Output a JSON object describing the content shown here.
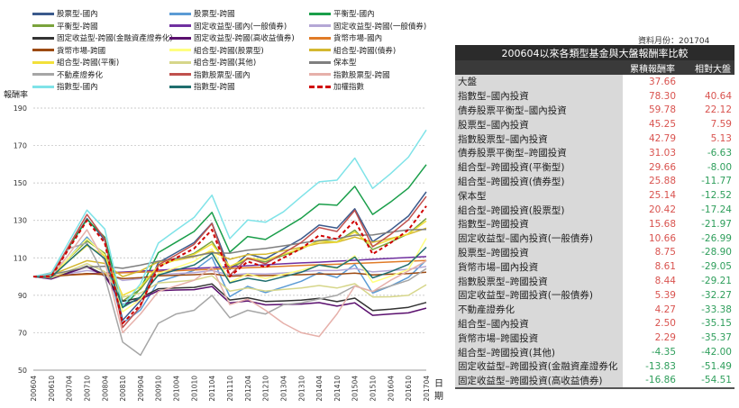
{
  "updated_label": "資料月份：201704",
  "table": {
    "title": "200604以來各類型基金與大盤報酬率比較",
    "headers": [
      "",
      "累積報酬率",
      "相對大盤"
    ],
    "rows": [
      {
        "name": "大盤",
        "ret": "37.66",
        "rel": ""
      },
      {
        "name": "指數型–國內投資",
        "ret": "78.30",
        "rel": "40.64"
      },
      {
        "name": "債券股票平衡型–國內投資",
        "ret": "59.78",
        "rel": "22.12"
      },
      {
        "name": "股票型–國內投資",
        "ret": "45.25",
        "rel": "7.59"
      },
      {
        "name": "指數股票型–國內投資",
        "ret": "42.79",
        "rel": "5.13"
      },
      {
        "name": "債券股票平衡型–跨國投資",
        "ret": "31.03",
        "rel": "-6.63"
      },
      {
        "name": "組合型–跨國投資(平衡型)",
        "ret": "29.66",
        "rel": "-8.00"
      },
      {
        "name": "組合型–跨國投資(債券型)",
        "ret": "25.88",
        "rel": "-11.77"
      },
      {
        "name": "保本型",
        "ret": "25.14",
        "rel": "-12.52"
      },
      {
        "name": "組合型–跨國投資(股票型)",
        "ret": "20.42",
        "rel": "-17.24"
      },
      {
        "name": "指數型–跨國投資",
        "ret": "15.68",
        "rel": "-21.97"
      },
      {
        "name": "固定收益型–國內投資(一般債券)",
        "ret": "10.66",
        "rel": "-26.99"
      },
      {
        "name": "股票型–跨國投資",
        "ret": "8.75",
        "rel": "-28.90"
      },
      {
        "name": "貨幣市場–國內投資",
        "ret": "8.61",
        "rel": "-29.05"
      },
      {
        "name": "指數股票型–跨國投資",
        "ret": "8.44",
        "rel": "-29.21"
      },
      {
        "name": "固定收益型–跨國投資(一般債券)",
        "ret": "5.39",
        "rel": "-32.27"
      },
      {
        "name": "不動產證券化",
        "ret": "4.27",
        "rel": "-33.38"
      },
      {
        "name": "組合型–國內投資",
        "ret": "2.50",
        "rel": "-35.15"
      },
      {
        "name": "貨幣市場–跨國投資",
        "ret": "2.29",
        "rel": "-35.37"
      },
      {
        "name": "組合型–跨國投資(其他)",
        "ret": "-4.35",
        "rel": "-42.00"
      },
      {
        "name": "固定收益型–跨國投資(金融資產證券化",
        "ret": "-13.83",
        "rel": "-51.49"
      },
      {
        "name": "固定收益型–跨國投資(高收益債券)",
        "ret": "-16.86",
        "rel": "-54.51"
      }
    ]
  },
  "chart_data": {
    "type": "line",
    "ylabel": "報酬率",
    "xlabel": "日期",
    "ylim": [
      50,
      190
    ],
    "yticks": [
      50,
      70,
      90,
      110,
      130,
      150,
      170,
      190
    ],
    "grid": true,
    "legend": "top",
    "categories": [
      "200604",
      "200610",
      "200704",
      "200710",
      "200804",
      "200810",
      "200904",
      "200910",
      "201004",
      "201010",
      "201104",
      "201110",
      "201204",
      "201210",
      "201304",
      "201310",
      "201404",
      "201410",
      "201504",
      "201510",
      "201604",
      "201610",
      "201704"
    ],
    "series": [
      {
        "name": "股票型-國內",
        "color": "#3b5a8c",
        "values": [
          100,
          100.3,
          115.7,
          131,
          119.4,
          76.7,
          87.1,
          107.4,
          112.8,
          118.1,
          128.5,
          103.8,
          112.1,
          109.5,
          114.8,
          120.2,
          127.5,
          125.9,
          136.2,
          118.6,
          124.9,
          132.3,
          145.25
        ]
      },
      {
        "name": "股票型-跨國",
        "color": "#5b9bd5",
        "values": [
          100,
          99,
          110.1,
          121.1,
          110.5,
          75.2,
          82.2,
          97.2,
          100.2,
          103.3,
          110.3,
          89.3,
          94.8,
          91.4,
          94.4,
          97.5,
          102.1,
          99.5,
          106.5,
          91.2,
          95,
          99.6,
          108.75
        ]
      },
      {
        "name": "平衡型-國內",
        "color": "#1a9e4a",
        "values": [
          100,
          101.2,
          115.9,
          130.5,
          121,
          83.4,
          93.6,
          112.8,
          118.4,
          124.1,
          134.3,
          113,
          121.4,
          119.8,
          125.5,
          131.2,
          138.7,
          138.1,
          148.2,
          133.2,
          139.8,
          147.3,
          159.78
        ]
      },
      {
        "name": "平衡型-跨國",
        "color": "#7aa33c",
        "values": [
          100,
          100.4,
          109.8,
          119.1,
          112.4,
          86.9,
          93.3,
          105.7,
          109,
          112.4,
          118.8,
          104.2,
          109.4,
          107.9,
          111.3,
          114.7,
          119.3,
          118.5,
          124.8,
          114.4,
          118.4,
          122.9,
          131.03
        ]
      },
      {
        "name": "固定收益型-國內(一般債券)",
        "color": "#7030a0",
        "values": [
          100,
          100.5,
          101,
          101.5,
          101.9,
          102.4,
          102.9,
          103.4,
          103.9,
          104.4,
          104.8,
          105.3,
          105.8,
          106.3,
          106.8,
          107.3,
          107.7,
          108.2,
          108.7,
          109.2,
          109.7,
          110.2,
          110.66
        ]
      },
      {
        "name": "固定收益型-跨國(一般債券)",
        "color": "#b4a7d6",
        "values": [
          100,
          100.1,
          101.6,
          103.2,
          102.1,
          97.9,
          98.9,
          101,
          101.6,
          102.1,
          103.2,
          100.8,
          101.6,
          101.4,
          101.9,
          102.6,
          103.3,
          103.2,
          104.3,
          102.5,
          103.2,
          103.9,
          105.39
        ]
      },
      {
        "name": "固定收益型-跨國(金融資產證券化)",
        "color": "#333333",
        "values": [
          100,
          98.9,
          102.2,
          105.6,
          100.8,
          86.8,
          88.7,
          93.5,
          93.9,
          94.2,
          96.1,
          87.5,
          88.7,
          86.7,
          87,
          87.4,
          88.4,
          86.6,
          88.5,
          81.9,
          82.6,
          83.6,
          86.17
        ]
      },
      {
        "name": "固定收益型-跨國(高收益債券)",
        "color": "#5a0f6e",
        "values": [
          100,
          98.7,
          102,
          105.2,
          100.3,
          85.1,
          87.8,
          92.5,
          92.8,
          93,
          94.7,
          85.9,
          87,
          84.9,
          85.1,
          85.3,
          86.1,
          84.2,
          86,
          79.3,
          80,
          80.6,
          83.14
        ]
      },
      {
        "name": "貨幣市場-國內",
        "color": "#e07b27",
        "values": [
          100,
          100.4,
          100.8,
          101.2,
          101.6,
          102,
          102.3,
          102.7,
          103.1,
          103.5,
          103.9,
          104.3,
          104.7,
          105.1,
          105.5,
          105.9,
          106.3,
          106.6,
          107,
          107.4,
          107.8,
          108.2,
          108.61
        ]
      },
      {
        "name": "貨幣市場-跨國",
        "color": "#9c4a12",
        "values": [
          100,
          100,
          100.8,
          101.6,
          101,
          98.9,
          99.4,
          100.4,
          100.7,
          101,
          101.5,
          100.2,
          100.6,
          100.5,
          100.8,
          101,
          101.4,
          101.3,
          101.8,
          100.9,
          101.3,
          101.6,
          102.29
        ]
      },
      {
        "name": "組合型-跨國(股票型)",
        "color": "#ffff80",
        "values": [
          100,
          99.7,
          110,
          120.2,
          111.5,
          81.2,
          87.9,
          101.6,
          104.8,
          108.1,
          114.8,
          97,
          101.4,
          99,
          101.2,
          103.4,
          106.1,
          104.4,
          111.1,
          96.9,
          100.2,
          103.8,
          120.42
        ]
      },
      {
        "name": "組合型-跨國(債券)",
        "color": "#d4b830",
        "values": [
          100,
          100.8,
          104.7,
          108.5,
          107,
          100,
          103,
          107.9,
          108.7,
          110.6,
          113.4,
          109.2,
          111.7,
          111.9,
          113.8,
          115.6,
          117.8,
          118.3,
          121.1,
          118.3,
          120.4,
          122.6,
          125.88
        ]
      },
      {
        "name": "組合型-跨國(平衡)",
        "color": "#f2e03a",
        "values": [
          100,
          100.5,
          108.5,
          116.5,
          111,
          90,
          94.4,
          105.9,
          108.9,
          111.9,
          117.4,
          105.4,
          109.9,
          108.9,
          111.9,
          115,
          118.9,
          118.3,
          123.8,
          116.3,
          119.8,
          122.8,
          129.66
        ]
      },
      {
        "name": "組合型-跨國(其他)",
        "color": "#d6d68a",
        "values": [
          100,
          99.3,
          103.1,
          106.9,
          102.6,
          89,
          91.2,
          96.6,
          97.3,
          98.1,
          100.4,
          92.2,
          93.9,
          92.3,
          93.1,
          93.9,
          95.2,
          93.9,
          96.2,
          89.1,
          89.2,
          90,
          95.65
        ]
      },
      {
        "name": "保本型",
        "color": "#7f7f7f",
        "values": [
          100,
          101.1,
          103,
          105.1,
          105.5,
          104.4,
          106.1,
          108.2,
          109.6,
          111,
          112.7,
          112.5,
          114.1,
          115,
          116.4,
          117.9,
          119.3,
          120.3,
          122.1,
          122.2,
          123.7,
          125,
          125.14
        ]
      },
      {
        "name": "不動產證券化",
        "color": "#a6a6a6",
        "values": [
          100,
          102,
          115,
          118,
          100,
          65,
          58,
          75,
          80,
          82,
          90,
          78,
          82,
          80,
          85,
          86,
          88,
          90,
          95,
          92,
          95,
          98,
          104.27
        ]
      },
      {
        "name": "指數股票型-國內",
        "color": "#c0504d",
        "values": [
          100,
          100.1,
          116.6,
          133.2,
          120.1,
          72.8,
          83.9,
          106.2,
          111.6,
          117.2,
          128.3,
          100.7,
          109.9,
          106.8,
          112.5,
          118.2,
          126.2,
          124.1,
          135.4,
          115.9,
          122.5,
          130.3,
          142.79
        ]
      },
      {
        "name": "指數股票型-跨國",
        "color": "#e6b0aa",
        "values": [
          100,
          100,
          112,
          125,
          108,
          70,
          80,
          92,
          95,
          98,
          105,
          85,
          88,
          82,
          75,
          70,
          68,
          80,
          95,
          92,
          98,
          103,
          108.44
        ]
      },
      {
        "name": "指數型-國內",
        "color": "#7fe3e8",
        "values": [
          100,
          101.8,
          118.7,
          135.5,
          125.4,
          84.2,
          96.1,
          117.9,
          124.8,
          131.6,
          143.5,
          120.3,
          130.2,
          129,
          134.6,
          142.7,
          150.6,
          151.5,
          163.3,
          147.1,
          155,
          163.8,
          178.3
        ]
      },
      {
        "name": "指數型-跨國",
        "color": "#1f6e6e",
        "values": [
          100,
          99.7,
          108.4,
          117.1,
          109.5,
          83.5,
          89.1,
          100.8,
          103.5,
          106.2,
          112.4,
          96.6,
          99.1,
          97.5,
          99.9,
          102.3,
          106.2,
          104.7,
          110.4,
          99.3,
          102.6,
          106.5,
          115.68
        ]
      },
      {
        "name": "加權指數",
        "color": "#d00000",
        "dashed": true,
        "values": [
          100,
          100,
          115,
          130,
          118,
          75,
          85,
          105,
          110,
          115,
          125,
          100,
          108,
          105,
          110,
          115,
          122,
          120,
          130,
          112,
          118,
          125,
          137.66
        ]
      }
    ]
  }
}
